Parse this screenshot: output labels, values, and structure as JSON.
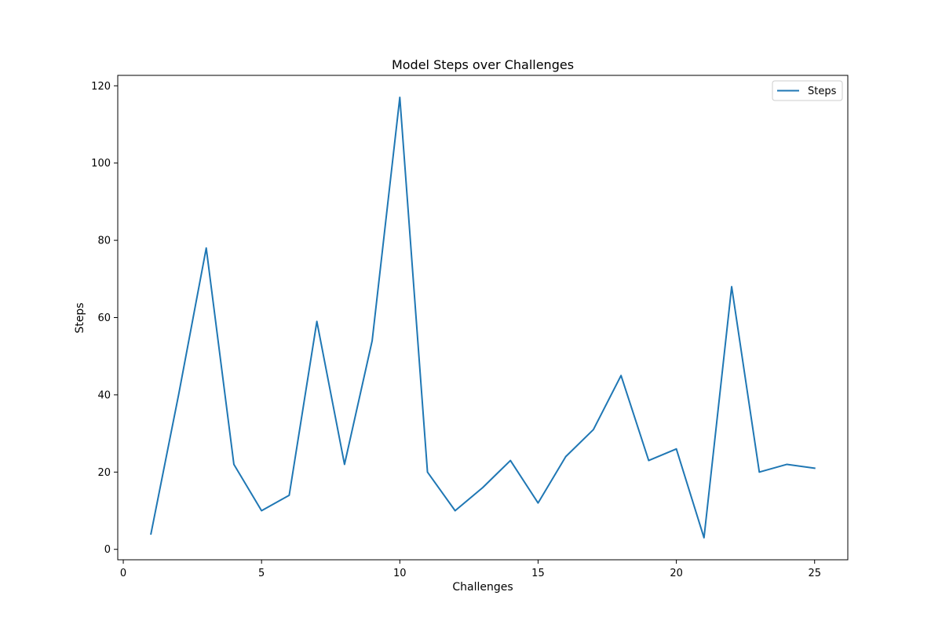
{
  "chart_data": {
    "type": "line",
    "title": "Model Steps over Challenges",
    "xlabel": "Challenges",
    "ylabel": "Steps",
    "xlim": [
      -0.2,
      26.2
    ],
    "ylim": [
      -2.7,
      122.7
    ],
    "xticks": [
      0,
      5,
      10,
      15,
      20,
      25
    ],
    "yticks": [
      0,
      20,
      40,
      60,
      80,
      100,
      120
    ],
    "grid": false,
    "legend_position": "top-right",
    "series": [
      {
        "name": "Steps",
        "color": "#1f77b4",
        "x": [
          1,
          2,
          3,
          4,
          5,
          6,
          7,
          8,
          9,
          10,
          11,
          12,
          13,
          14,
          15,
          16,
          17,
          18,
          19,
          20,
          21,
          22,
          23,
          24,
          25
        ],
        "y": [
          4,
          40,
          78,
          22,
          10,
          14,
          59,
          22,
          54,
          117,
          20,
          10,
          16,
          23,
          12,
          24,
          31,
          45,
          23,
          26,
          3,
          68,
          20,
          22,
          21
        ]
      }
    ]
  }
}
